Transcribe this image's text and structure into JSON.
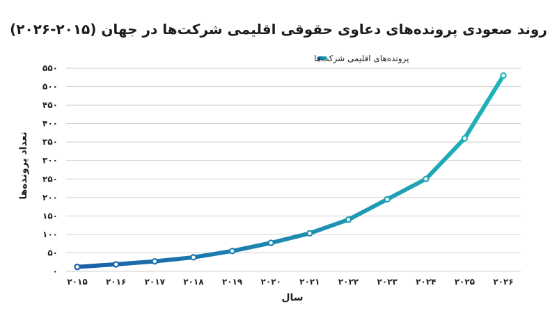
{
  "chart_data": {
    "type": "line",
    "title": "روند صعودی پرونده‌های دعاوی حقوقی اقلیمی شرکت‌ها در جهان (۲۰۱۵-۲۰۲۶)",
    "xlabel": "سال",
    "ylabel": "تعداد پرونده‌ها",
    "x": [
      2015,
      2016,
      2017,
      2018,
      2019,
      2020,
      2021,
      2022,
      2023,
      2024,
      2025,
      2026
    ],
    "x_tick_labels": [
      "۲۰۱۵",
      "۲۰۱۶",
      "۲۰۱۷",
      "۲۰۱۸",
      "۲۰۱۹",
      "۲۰۲۰",
      "۲۰۲۱",
      "۲۰۲۲",
      "۲۰۲۳",
      "۲۰۲۴",
      "۲۰۲۵",
      "۲۰۲۶"
    ],
    "ylim": [
      0,
      550
    ],
    "y_ticks": [
      0,
      50,
      100,
      150,
      200,
      250,
      300,
      350,
      400,
      450,
      500,
      550
    ],
    "y_tick_labels": [
      "۰",
      "۵۰",
      "۱۰۰",
      "۱۵۰",
      "۲۰۰",
      "۲۵۰",
      "۳۰۰",
      "۳۵۰",
      "۴۰۰",
      "۴۵۰",
      "۵۰۰",
      "۵۵۰"
    ],
    "grid": "horizontal",
    "legend_position": "top-center",
    "series": [
      {
        "name": "پرونده‌های اقلیمی شرکت‌ها",
        "values": [
          12,
          19,
          27,
          38,
          55,
          77,
          103,
          140,
          195,
          250,
          360,
          530
        ],
        "color_start": "#1b5fa8",
        "color_end": "#1fb5b8"
      }
    ]
  }
}
